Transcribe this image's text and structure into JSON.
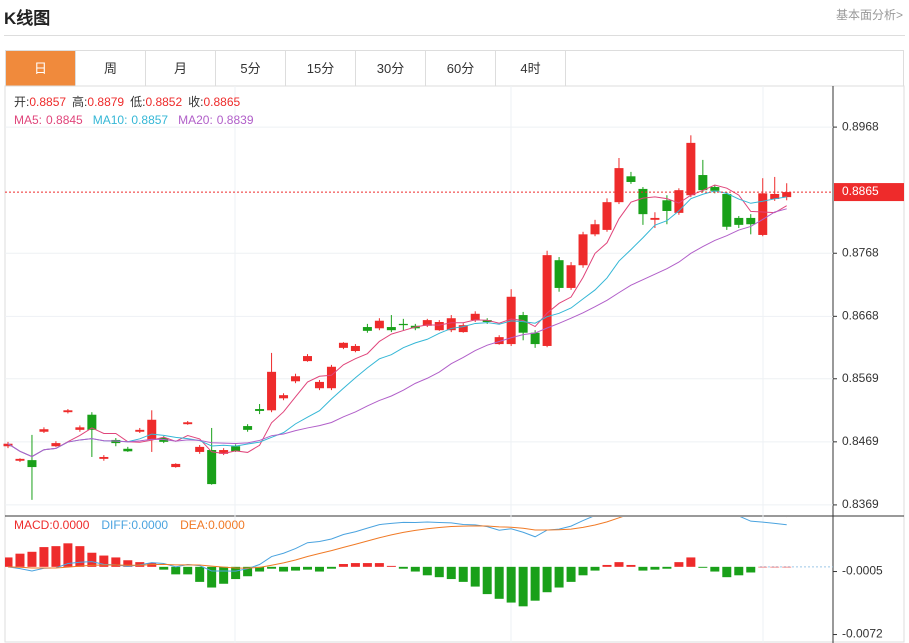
{
  "header": {
    "title": "K线图",
    "link": "基本面分析>"
  },
  "tabs": [
    "日",
    "周",
    "月",
    "5分",
    "15分",
    "30分",
    "60分",
    "4时"
  ],
  "active_tab": 0,
  "chart_data": [
    {
      "type": "candlestick",
      "up_color": "#ee2b2b",
      "down_color": "#19a019",
      "info": [
        {
          "label": "开:",
          "value": 0.8857
        },
        {
          "label": "高:",
          "value": 0.8879
        },
        {
          "label": "低:",
          "value": 0.8852
        },
        {
          "label": "收:",
          "value": 0.8865
        }
      ],
      "moving_averages": [
        {
          "name": "MA5:",
          "value": 0.8845,
          "color": "#e0457b"
        },
        {
          "name": "MA10:",
          "value": 0.8857,
          "color": "#35b7d6"
        },
        {
          "name": "MA20:",
          "value": 0.8839,
          "color": "#b15fc9"
        }
      ],
      "last_price": 0.8865,
      "open": [
        0.8462,
        0.8439,
        0.844,
        0.8485,
        0.8462,
        0.8516,
        0.8488,
        0.8512,
        0.8442,
        0.8472,
        0.8458,
        0.8485,
        0.8472,
        0.8475,
        0.8429,
        0.8497,
        0.8453,
        0.8456,
        0.845,
        0.8462,
        0.8494,
        0.8521,
        0.8519,
        0.8538,
        0.8565,
        0.8597,
        0.8554,
        0.8554,
        0.8618,
        0.8613,
        0.8651,
        0.8649,
        0.8651,
        0.8656,
        0.8653,
        0.8653,
        0.8646,
        0.8646,
        0.8643,
        0.8662,
        0.8662,
        0.8624,
        0.8624,
        0.867,
        0.8642,
        0.8621,
        0.8757,
        0.8713,
        0.8749,
        0.8798,
        0.8805,
        0.8849,
        0.889,
        0.887,
        0.8821,
        0.8852,
        0.8832,
        0.886,
        0.8892,
        0.8873,
        0.8862,
        0.8824,
        0.8824,
        0.8797,
        0.8854,
        0.8857
      ],
      "high": [
        0.8469,
        0.8443,
        0.848,
        0.8492,
        0.847,
        0.8521,
        0.8495,
        0.8516,
        0.8448,
        0.8475,
        0.8461,
        0.8491,
        0.8519,
        0.8478,
        0.8435,
        0.8502,
        0.8464,
        0.8491,
        0.8459,
        0.8465,
        0.8497,
        0.8529,
        0.861,
        0.8546,
        0.8577,
        0.8608,
        0.8567,
        0.8591,
        0.8627,
        0.8624,
        0.8656,
        0.8665,
        0.867,
        0.8664,
        0.8656,
        0.8664,
        0.8662,
        0.867,
        0.8657,
        0.8676,
        0.8665,
        0.8638,
        0.8711,
        0.8675,
        0.8646,
        0.8772,
        0.8762,
        0.8754,
        0.8802,
        0.8821,
        0.8855,
        0.8919,
        0.8897,
        0.8873,
        0.8833,
        0.886,
        0.8871,
        0.8955,
        0.8916,
        0.8876,
        0.8865,
        0.8827,
        0.883,
        0.8887,
        0.8889,
        0.8879
      ],
      "low": [
        0.8459,
        0.8437,
        0.8377,
        0.8483,
        0.8461,
        0.8514,
        0.8485,
        0.8445,
        0.8439,
        0.8462,
        0.8453,
        0.8483,
        0.8453,
        0.8467,
        0.8428,
        0.8496,
        0.845,
        0.8401,
        0.8448,
        0.8453,
        0.8485,
        0.8513,
        0.8516,
        0.8535,
        0.8562,
        0.8596,
        0.8551,
        0.8551,
        0.8616,
        0.8611,
        0.8642,
        0.8646,
        0.8643,
        0.8646,
        0.8646,
        0.8651,
        0.8645,
        0.8643,
        0.8642,
        0.8659,
        0.8656,
        0.8623,
        0.8621,
        0.863,
        0.8618,
        0.8619,
        0.8707,
        0.871,
        0.8745,
        0.8795,
        0.8802,
        0.8846,
        0.8878,
        0.8813,
        0.8808,
        0.8814,
        0.8829,
        0.8857,
        0.8865,
        0.8863,
        0.8805,
        0.8808,
        0.8798,
        0.8795,
        0.8851,
        0.8852
      ],
      "close": [
        0.8466,
        0.8442,
        0.8429,
        0.8489,
        0.8467,
        0.8519,
        0.8492,
        0.8488,
        0.8445,
        0.8467,
        0.8454,
        0.8488,
        0.8504,
        0.8469,
        0.8434,
        0.85,
        0.8461,
        0.8402,
        0.8456,
        0.8454,
        0.8488,
        0.8518,
        0.858,
        0.8543,
        0.8573,
        0.8605,
        0.8564,
        0.8588,
        0.8626,
        0.8621,
        0.8645,
        0.8661,
        0.8646,
        0.8654,
        0.8649,
        0.8662,
        0.8659,
        0.8665,
        0.8654,
        0.8672,
        0.8659,
        0.8635,
        0.8699,
        0.8642,
        0.8624,
        0.8765,
        0.8713,
        0.8749,
        0.8798,
        0.8814,
        0.8849,
        0.8903,
        0.8881,
        0.883,
        0.8824,
        0.8835,
        0.8868,
        0.8943,
        0.8868,
        0.8867,
        0.881,
        0.8813,
        0.8814,
        0.8863,
        0.8862,
        0.8865
      ],
      "ylim": [
        0.8353,
        0.903
      ],
      "yticks": [
        0.8968,
        0.8768,
        0.8668,
        0.8569,
        0.8469,
        0.8369
      ],
      "grid": true
    },
    {
      "type": "macd",
      "indicators": [
        {
          "name": "MACD:",
          "value": 0,
          "value_label": "0.0000",
          "color": "#ee2b2b"
        },
        {
          "name": "DIFF:",
          "value": 0,
          "value_label": "0.0000",
          "color": "#4aa3df"
        },
        {
          "name": "DEA:",
          "value": 0,
          "value_label": "0.0000",
          "color": "#f07a26"
        }
      ],
      "values": [
        0.001,
        0.0014,
        0.0016,
        0.0021,
        0.0022,
        0.0025,
        0.0022,
        0.0015,
        0.0012,
        0.001,
        0.0007,
        0.0005,
        0.0004,
        -0.0003,
        -0.0008,
        -0.0008,
        -0.0016,
        -0.0022,
        -0.0018,
        -0.0013,
        -0.001,
        -0.0005,
        -0.0002,
        -0.0005,
        -0.0004,
        -0.0003,
        -0.0005,
        -0.0002,
        0.0003,
        0.0004,
        0.0004,
        0.0004,
        0.0001,
        -0.0002,
        -0.0005,
        -0.0009,
        -0.0011,
        -0.0013,
        -0.0016,
        -0.0021,
        -0.0029,
        -0.0034,
        -0.0038,
        -0.0042,
        -0.0036,
        -0.0027,
        -0.0022,
        -0.0016,
        -0.0009,
        -0.0004,
        0.0002,
        0.0005,
        0.0002,
        -0.0004,
        -0.0003,
        -0.0002,
        0.0005,
        0.001,
        -0.0001,
        -0.0005,
        -0.0011,
        -0.0009,
        -0.0006,
        0,
        0,
        0
      ],
      "ylim": [
        -0.0081,
        0.0053
      ],
      "yticks": [
        -0.0005,
        -0.0072
      ]
    }
  ]
}
